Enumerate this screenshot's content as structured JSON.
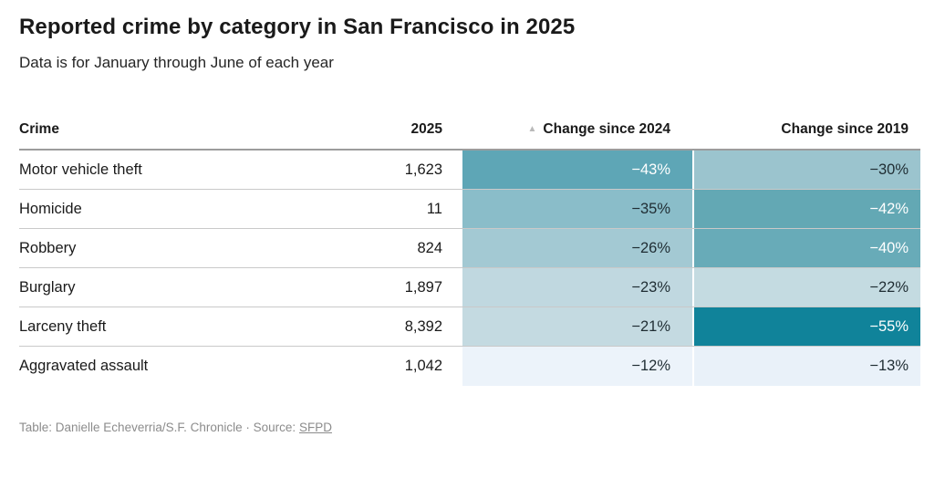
{
  "header": {
    "title": "Reported crime by category in San Francisco in 2025",
    "subtitle": "Data is for January through June of each year"
  },
  "table": {
    "columns": {
      "crime": "Crime",
      "count": "2025",
      "change_2024": "Change since 2024",
      "change_2019": "Change since 2019"
    },
    "sort_indicator": "▲",
    "rows": [
      {
        "crime": "Motor vehicle theft",
        "count": "1,623",
        "change_2024": {
          "text": "−43%",
          "bg": "#5ea6b6",
          "fg": "#ffffff"
        },
        "change_2019": {
          "text": "−30%",
          "bg": "#9bc4ce",
          "fg": "#1f2d33"
        }
      },
      {
        "crime": "Homicide",
        "count": "11",
        "change_2024": {
          "text": "−35%",
          "bg": "#8abdc9",
          "fg": "#1f2d33"
        },
        "change_2019": {
          "text": "−42%",
          "bg": "#63a8b4",
          "fg": "#ffffff"
        }
      },
      {
        "crime": "Robbery",
        "count": "824",
        "change_2024": {
          "text": "−26%",
          "bg": "#a3c9d3",
          "fg": "#1f2d33"
        },
        "change_2019": {
          "text": "−40%",
          "bg": "#68abb8",
          "fg": "#ffffff"
        }
      },
      {
        "crime": "Burglary",
        "count": "1,897",
        "change_2024": {
          "text": "−23%",
          "bg": "#c0d8e0",
          "fg": "#1f2d33"
        },
        "change_2019": {
          "text": "−22%",
          "bg": "#c4dbe1",
          "fg": "#1f2d33"
        }
      },
      {
        "crime": "Larceny theft",
        "count": "8,392",
        "change_2024": {
          "text": "−21%",
          "bg": "#c4dae1",
          "fg": "#1f2d33"
        },
        "change_2019": {
          "text": "−55%",
          "bg": "#10839a",
          "fg": "#ffffff"
        }
      },
      {
        "crime": "Aggravated assault",
        "count": "1,042",
        "change_2024": {
          "text": "−12%",
          "bg": "#ecf3fa",
          "fg": "#1f2d33"
        },
        "change_2019": {
          "text": "−13%",
          "bg": "#e9f1f9",
          "fg": "#1f2d33"
        }
      }
    ]
  },
  "footer": {
    "credit": "Table: Danielle Echeverria/S.F. Chronicle",
    "separator": "·",
    "source_label": "Source:",
    "source_link": "SFPD"
  },
  "chart_data": {
    "type": "table",
    "title": "Reported crime by category in San Francisco in 2025",
    "subtitle": "Data is for January through June of each year",
    "columns": [
      "Crime",
      "2025",
      "Change since 2024",
      "Change since 2019"
    ],
    "rows": [
      [
        "Motor vehicle theft",
        1623,
        -43,
        -30
      ],
      [
        "Homicide",
        11,
        -35,
        -42
      ],
      [
        "Robbery",
        824,
        -26,
        -40
      ],
      [
        "Burglary",
        1897,
        -23,
        -22
      ],
      [
        "Larceny theft",
        8392,
        -21,
        -55
      ],
      [
        "Aggravated assault",
        1042,
        -12,
        -13
      ]
    ],
    "units": {
      "change_columns": "percent"
    },
    "sorted_by": "Change since 2024 ascending",
    "style_note": "teal heatmap shading, darker = larger decrease",
    "palette": [
      "#e9f1f9",
      "#c4dbe1",
      "#9bc4ce",
      "#63a8b4",
      "#10839a"
    ]
  }
}
